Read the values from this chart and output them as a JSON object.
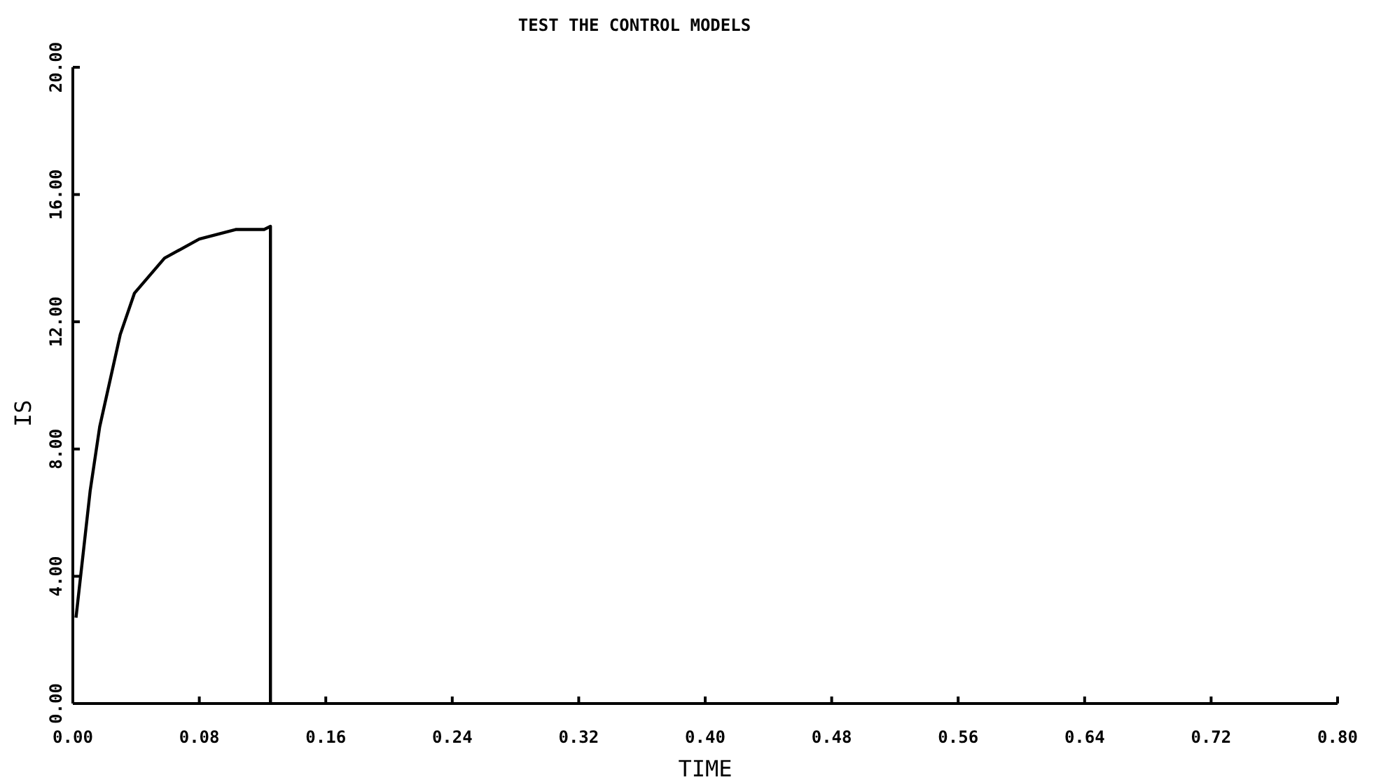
{
  "chart_data": {
    "type": "line",
    "title": "TEST THE CONTROL MODELS",
    "xlabel": "TIME",
    "ylabel": "IS",
    "x": [
      0.002,
      0.011,
      0.017,
      0.03,
      0.039,
      0.058,
      0.08,
      0.103,
      0.121,
      0.125,
      0.125
    ],
    "series": [
      {
        "color": "#000000",
        "values": [
          2.7,
          6.7,
          8.7,
          11.6,
          12.9,
          14.0,
          14.6,
          14.9,
          14.9,
          15.0,
          0
        ]
      }
    ],
    "xlim": [
      0,
      0.8
    ],
    "ylim": [
      0,
      20
    ],
    "xticks": [
      {
        "value": 0,
        "label": "0.00"
      },
      {
        "value": 0.08,
        "label": "0.08"
      },
      {
        "value": 0.16,
        "label": "0.16"
      },
      {
        "value": 0.24,
        "label": "0.24"
      },
      {
        "value": 0.32,
        "label": "0.32"
      },
      {
        "value": 0.4,
        "label": "0.40"
      },
      {
        "value": 0.48,
        "label": "0.48"
      },
      {
        "value": 0.56,
        "label": "0.56"
      },
      {
        "value": 0.64,
        "label": "0.64"
      },
      {
        "value": 0.72,
        "label": "0.72"
      },
      {
        "value": 0.8,
        "label": "0.80"
      }
    ],
    "yticks": [
      {
        "value": 0,
        "label": "0.00"
      },
      {
        "value": 4,
        "label": "4.00"
      },
      {
        "value": 8,
        "label": "8.00"
      },
      {
        "value": 12,
        "label": "12.00"
      },
      {
        "value": 16,
        "label": "16.00"
      },
      {
        "value": 20,
        "label": "20.00"
      }
    ],
    "grid": false,
    "marker": "none",
    "line_style": "solid"
  }
}
